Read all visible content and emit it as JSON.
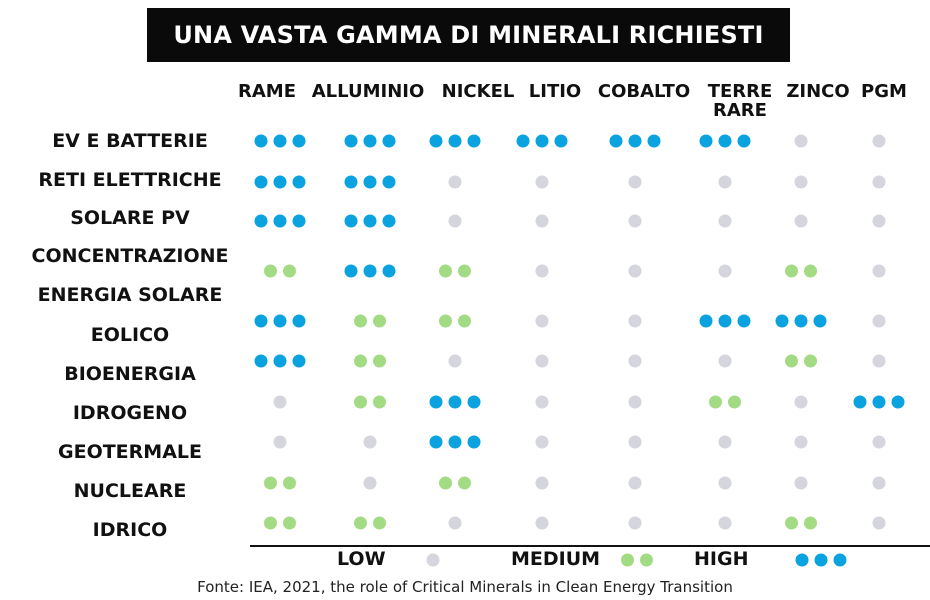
{
  "chart_data": {
    "type": "table",
    "title": "UNA VASTA GAMMA DI MINERALI RICHIESTI",
    "columns": [
      "RAME",
      "ALLUMINIO",
      "NICKEL",
      "LITIO",
      "COBALTO",
      "TERRE RARE",
      "ZINCO",
      "PGM"
    ],
    "rows": [
      {
        "label": "EV E BATTERIE",
        "values": [
          3,
          3,
          3,
          3,
          3,
          3,
          1,
          1
        ]
      },
      {
        "label": "RETI ELETTRICHE",
        "values": [
          3,
          3,
          1,
          1,
          1,
          1,
          1,
          1
        ]
      },
      {
        "label": "SOLARE PV",
        "values": [
          3,
          3,
          1,
          1,
          1,
          1,
          1,
          1
        ]
      },
      {
        "label": "CONCENTRAZIONE ENERGIA SOLARE",
        "values": [
          2,
          3,
          2,
          1,
          1,
          1,
          2,
          1
        ]
      },
      {
        "label": "EOLICO",
        "values": [
          3,
          2,
          2,
          1,
          1,
          3,
          3,
          1
        ]
      },
      {
        "label": "BIOENERGIA",
        "values": [
          3,
          2,
          1,
          1,
          1,
          1,
          2,
          1
        ]
      },
      {
        "label": "IDROGENO",
        "values": [
          1,
          2,
          3,
          1,
          1,
          2,
          1,
          3
        ]
      },
      {
        "label": "GEOTERMALE",
        "values": [
          1,
          1,
          3,
          1,
          1,
          1,
          1,
          1
        ]
      },
      {
        "label": "NUCLEARE",
        "values": [
          2,
          1,
          2,
          1,
          1,
          1,
          1,
          1
        ]
      },
      {
        "label": "IDRICO",
        "values": [
          2,
          2,
          1,
          1,
          1,
          1,
          2,
          1
        ]
      }
    ],
    "legend": [
      {
        "label": "LOW",
        "level": 1
      },
      {
        "label": "MEDIUM",
        "level": 2
      },
      {
        "label": "HIGH",
        "level": 3
      }
    ],
    "colors": {
      "low": "#d5d5dd",
      "medium": "#a3db84",
      "high": "#0aa3e0"
    },
    "legend_placement": "bottom"
  },
  "source": "Fonte: IEA, 2021, the role of Critical Minerals in Clean Energy Transition"
}
